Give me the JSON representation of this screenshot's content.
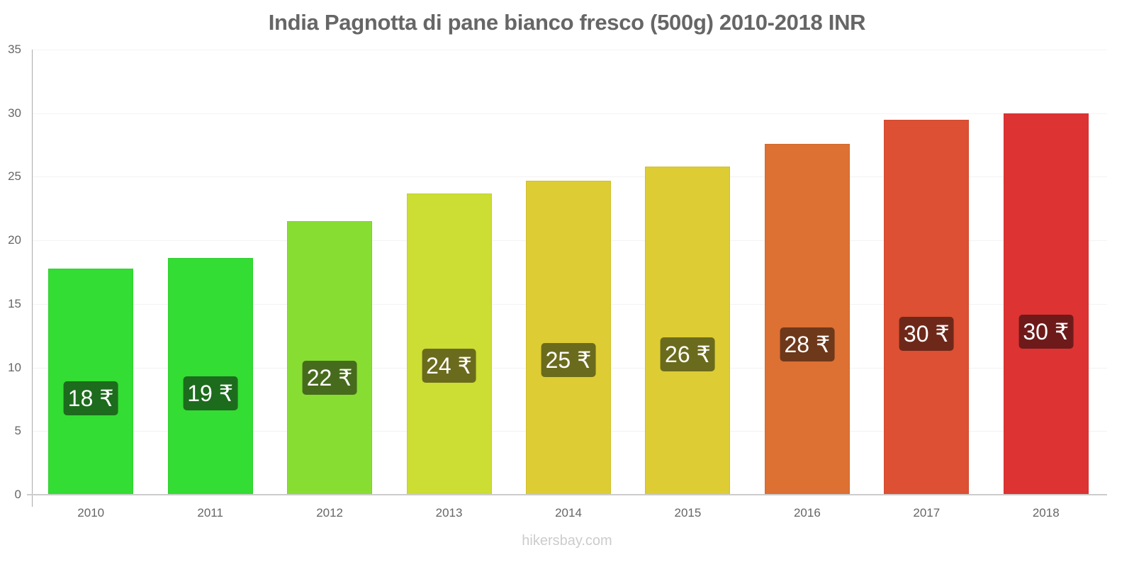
{
  "chart_data": {
    "type": "bar",
    "title": "India Pagnotta di pane bianco fresco (500g) 2010-2018 INR",
    "xlabel": "",
    "ylabel": "",
    "categories": [
      "2010",
      "2011",
      "2012",
      "2013",
      "2014",
      "2015",
      "2016",
      "2017",
      "2018"
    ],
    "values": [
      17.8,
      18.6,
      21.5,
      23.7,
      24.7,
      25.8,
      27.6,
      29.5,
      30.0
    ],
    "data_labels": [
      "18 ₹",
      "19 ₹",
      "22 ₹",
      "24 ₹",
      "25 ₹",
      "26 ₹",
      "28 ₹",
      "30 ₹",
      "30 ₹"
    ],
    "bar_colors": [
      "#33dd33",
      "#33dd33",
      "#88dd33",
      "#ccdd33",
      "#ddcc33",
      "#ddcc33",
      "#dd7033",
      "#dd5033",
      "#dd3333"
    ],
    "label_colors": [
      "#1d6b1d",
      "#1d6b1d",
      "#476b1d",
      "#6b6b1d",
      "#6b6b1d",
      "#6b6b1d",
      "#6e381a",
      "#6e281a",
      "#6e1a1a"
    ],
    "ylim": [
      0,
      35
    ],
    "yticks": [
      "0",
      "5",
      "10",
      "15",
      "20",
      "25",
      "30",
      "35"
    ],
    "grid": true,
    "legend": null
  },
  "watermark": "hikersbay.com"
}
